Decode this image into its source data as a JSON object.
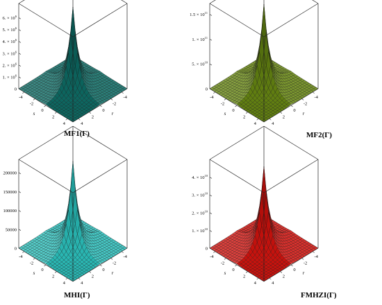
{
  "figure": {
    "panels": [
      {
        "caption": "MF1(Γ)",
        "color": "#0e6e67",
        "color_dark": "#063d39",
        "chart_data": {
          "type": "surface3d",
          "x_axis_label": "s",
          "y_axis_label": "r",
          "x_ticks": [
            "-4",
            "-2",
            "0",
            "2",
            "4"
          ],
          "y_ticks": [
            "-4",
            "-2",
            "0",
            "2",
            "4"
          ],
          "z_ticks": [
            {
              "value": 0,
              "label": "0",
              "exp": ""
            },
            {
              "value": 1000000,
              "label": "1. × 10",
              "exp": "6"
            },
            {
              "value": 2000000,
              "label": "2. × 10",
              "exp": "6"
            },
            {
              "value": 3000000,
              "label": "3. × 10",
              "exp": "6"
            },
            {
              "value": 4000000,
              "label": "4. × 10",
              "exp": "6"
            },
            {
              "value": 5000000,
              "label": "5. × 10",
              "exp": "6"
            },
            {
              "value": 6000000,
              "label": "6. × 10",
              "exp": "6"
            }
          ],
          "zlim": [
            0,
            7200000
          ],
          "x_range": [
            -5,
            5
          ],
          "y_range": [
            -5,
            5
          ]
        }
      },
      {
        "caption": "MF2(Γ)",
        "color": "#6a8a12",
        "color_dark": "#33450a",
        "chart_data": {
          "type": "surface3d",
          "x_axis_label": "s",
          "y_axis_label": "r",
          "x_ticks": [
            "-4",
            "-2",
            "0",
            "2",
            "4"
          ],
          "y_ticks": [
            "-4",
            "-2",
            "0",
            "2",
            "4"
          ],
          "z_ticks": [
            {
              "value": 0,
              "label": "0",
              "exp": ""
            },
            {
              "value": 50000000000,
              "label": "5. × 10",
              "exp": "10"
            },
            {
              "value": 100000000000,
              "label": "1. × 10",
              "exp": "11"
            },
            {
              "value": 150000000000,
              "label": "1.5 × 10",
              "exp": "11"
            }
          ],
          "zlim": [
            0,
            172000000000
          ],
          "x_range": [
            -5,
            5
          ],
          "y_range": [
            -5,
            5
          ]
        }
      },
      {
        "caption": "MHI(Γ)",
        "color": "#2ec4c0",
        "color_dark": "#127672",
        "chart_data": {
          "type": "surface3d",
          "x_axis_label": "s",
          "y_axis_label": "r",
          "x_ticks": [
            "-4",
            "-2",
            "0",
            "2",
            "4"
          ],
          "y_ticks": [
            "-4",
            "-2",
            "0",
            "2",
            "4"
          ],
          "z_ticks": [
            {
              "value": 0,
              "label": "0",
              "exp": ""
            },
            {
              "value": 50000,
              "label": "50000",
              "exp": ""
            },
            {
              "value": 100000,
              "label": "100000",
              "exp": ""
            },
            {
              "value": 150000,
              "label": "150000",
              "exp": ""
            },
            {
              "value": 200000,
              "label": "200000",
              "exp": ""
            }
          ],
          "zlim": [
            0,
            235000
          ],
          "x_range": [
            -5,
            5
          ],
          "y_range": [
            -5,
            5
          ]
        }
      },
      {
        "caption": "FMHZI(Γ)",
        "color": "#d8140f",
        "color_dark": "#7a0805",
        "chart_data": {
          "type": "surface3d",
          "x_axis_label": "s",
          "y_axis_label": "r",
          "x_ticks": [
            "-4",
            "-2",
            "0",
            "2",
            "4"
          ],
          "y_ticks": [
            "-4",
            "-2",
            "0",
            "2",
            "4"
          ],
          "z_ticks": [
            {
              "value": 0,
              "label": "0",
              "exp": ""
            },
            {
              "value": 10000000000,
              "label": "1. × 10",
              "exp": "10"
            },
            {
              "value": 20000000000,
              "label": "2. × 10",
              "exp": "10"
            },
            {
              "value": 30000000000,
              "label": "3. × 10",
              "exp": "10"
            },
            {
              "value": 40000000000,
              "label": "4. × 10",
              "exp": "10"
            }
          ],
          "zlim": [
            0,
            50000000000
          ],
          "x_range": [
            -5,
            5
          ],
          "y_range": [
            -5,
            5
          ]
        }
      }
    ]
  }
}
